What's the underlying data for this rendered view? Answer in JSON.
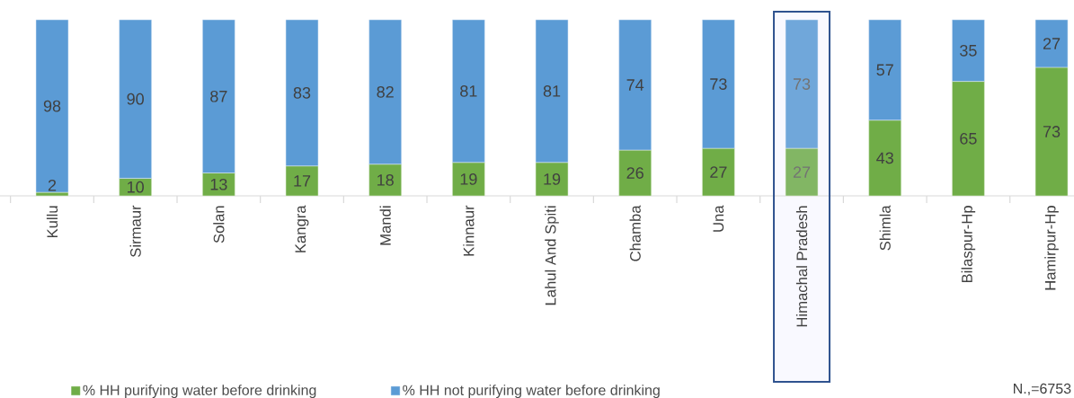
{
  "chart_data": {
    "type": "bar",
    "stacked": true,
    "data_labels": true,
    "legend": "bottom left",
    "categories": [
      "Kullu",
      "Sirmaur",
      "Solan",
      "Kangra",
      "Mandi",
      "Kinnaur",
      "Lahul And Spiti",
      "Chamba",
      "Una",
      "Himachal Pradesh",
      "Shimla",
      "Bilaspur-Hp",
      "Hamirpur-Hp"
    ],
    "series": [
      {
        "name": "% HH purifying water before drinking",
        "color": "#70ad47",
        "colors": [
          "#70ad47",
          "#70ad47",
          "#70ad47",
          "#70ad47",
          "#70ad47",
          "#70ad47",
          "#70ad47",
          "#70ad47",
          "#70ad47",
          "#82b664",
          "#70ad47",
          "#70ad47",
          "#70ad47"
        ],
        "values": [
          2,
          10,
          13,
          17,
          18,
          19,
          19,
          26,
          27,
          27,
          43,
          65,
          73
        ]
      },
      {
        "name": "% HH not purifying water before drinking",
        "color": "#5b9bd5",
        "colors": [
          "#5b9bd5",
          "#5b9bd5",
          "#5b9bd5",
          "#5b9bd5",
          "#5b9bd5",
          "#5b9bd5",
          "#5b9bd5",
          "#5b9bd5",
          "#5b9bd5",
          "#70a7da",
          "#5b9bd5",
          "#5b9bd5",
          "#5b9bd5"
        ],
        "values": [
          98,
          90,
          87,
          83,
          82,
          81,
          81,
          74,
          73,
          73,
          57,
          35,
          27
        ]
      }
    ],
    "annotations": [
      "N.,=6753"
    ]
  }
}
